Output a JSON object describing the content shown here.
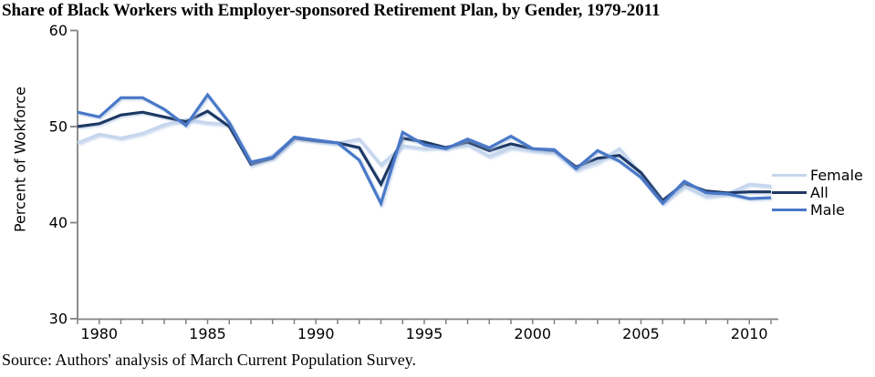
{
  "title": "Share of Black Workers with Employer-sponsored Retirement Plan, by Gender, 1979-2011",
  "source_note": "Source: Authors' analysis of March Current Population Survey.",
  "y_axis": {
    "label": "Percent of Wokforce",
    "ticks": [
      60,
      50,
      40,
      30
    ]
  },
  "x_axis": {
    "labeled_ticks": [
      1980,
      1985,
      1990,
      1995,
      2000,
      2005,
      2010
    ]
  },
  "legend": {
    "items": [
      {
        "label": "Female",
        "color": "#c6d6ee"
      },
      {
        "label": "All",
        "color": "#1f3864"
      },
      {
        "label": "Male",
        "color": "#4878c8"
      }
    ]
  },
  "colors": {
    "axis": "#808080",
    "shadow": "#a8c0e2"
  },
  "chart_data": {
    "type": "line",
    "title": "Share of Black Workers with Employer-sponsored Retirement Plan, by Gender, 1979-2011",
    "xlabel": "",
    "ylabel": "Percent of Wokforce",
    "ylim": [
      30,
      60
    ],
    "y_ticks": [
      30,
      40,
      50,
      60
    ],
    "x_tick_labels": [
      1980,
      1985,
      1990,
      1995,
      2000,
      2005,
      2010
    ],
    "grid": false,
    "legend_position": "right",
    "x": [
      1979,
      1980,
      1981,
      1982,
      1983,
      1984,
      1985,
      1986,
      1987,
      1988,
      1989,
      1990,
      1991,
      1992,
      1993,
      1994,
      1995,
      1996,
      1997,
      1998,
      1999,
      2000,
      2001,
      2002,
      2003,
      2004,
      2005,
      2006,
      2007,
      2008,
      2009,
      2010,
      2011
    ],
    "series": [
      {
        "name": "Female",
        "color": "#c6d6ee",
        "values": [
          48.3,
          49.2,
          48.8,
          49.3,
          50.2,
          50.7,
          50.4,
          50.2,
          46.0,
          47.0,
          48.8,
          48.6,
          48.3,
          48.7,
          46.0,
          48.0,
          47.7,
          47.9,
          48.1,
          46.9,
          47.8,
          47.5,
          47.3,
          45.5,
          46.3,
          47.7,
          45.0,
          42.1,
          43.8,
          42.7,
          43.0,
          44.0,
          43.8
        ]
      },
      {
        "name": "All",
        "color": "#1f3864",
        "values": [
          50.0,
          50.3,
          51.2,
          51.5,
          51.0,
          50.5,
          51.6,
          50.0,
          46.1,
          46.7,
          48.8,
          48.5,
          48.3,
          47.8,
          44.0,
          48.8,
          48.4,
          47.8,
          48.4,
          47.5,
          48.2,
          47.7,
          47.5,
          45.8,
          46.7,
          47.0,
          45.2,
          42.3,
          44.1,
          43.3,
          43.1,
          43.2,
          43.2
        ]
      },
      {
        "name": "Male",
        "color": "#4878c8",
        "values": [
          51.5,
          51.0,
          53.0,
          53.0,
          51.8,
          50.1,
          53.3,
          50.4,
          46.3,
          46.8,
          48.9,
          48.6,
          48.3,
          46.5,
          42.0,
          49.4,
          48.1,
          47.7,
          48.7,
          47.8,
          49.0,
          47.7,
          47.6,
          45.6,
          47.5,
          46.4,
          44.7,
          42.0,
          44.3,
          43.1,
          43.0,
          42.5,
          42.6
        ]
      }
    ]
  }
}
